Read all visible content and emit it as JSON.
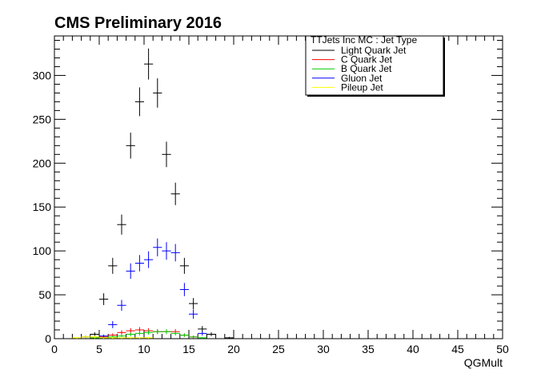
{
  "chart_data": {
    "type": "scatter",
    "title": "CMS Preliminary 2016",
    "xlabel": "QGMult",
    "ylabel": "",
    "xlim": [
      0,
      50
    ],
    "ylim": [
      0,
      345
    ],
    "x_ticks": [
      0,
      5,
      10,
      15,
      20,
      25,
      30,
      35,
      40,
      45,
      50
    ],
    "y_ticks": [
      0,
      50,
      100,
      150,
      200,
      250,
      300
    ],
    "legend": {
      "title": "TTJets Inc MC : Jet Type",
      "placement": "top-right",
      "entries": [
        {
          "label": "Light Quark Jet",
          "color": "#000000"
        },
        {
          "label": "C Quark Jet",
          "color": "#ff0000"
        },
        {
          "label": "B Quark Jet",
          "color": "#00cc00"
        },
        {
          "label": "Gluon Jet",
          "color": "#0000ff"
        },
        {
          "label": "Pileup Jet",
          "color": "#ffff00"
        }
      ]
    },
    "series": [
      {
        "name": "Light Quark Jet",
        "color": "#000000",
        "x": [
          3.5,
          4.5,
          5.5,
          6.5,
          7.5,
          8.5,
          9.5,
          10.5,
          11.5,
          12.5,
          13.5,
          14.5,
          15.5,
          16.5,
          17.5,
          19.5
        ],
        "y": [
          2,
          5,
          45,
          83,
          130,
          220,
          270,
          313,
          280,
          210,
          165,
          83,
          40,
          11,
          5,
          1
        ],
        "yerr": [
          1.5,
          2.2,
          6.7,
          9.1,
          11.4,
          14.8,
          16.4,
          17.7,
          16.7,
          14.5,
          12.8,
          9.1,
          6.3,
          3.3,
          2.2,
          1
        ]
      },
      {
        "name": "C Quark Jet",
        "color": "#ff0000",
        "x": [
          4.5,
          5.5,
          6.5,
          7.5,
          8.5,
          9.5,
          10.5,
          11.5,
          12.5,
          13.5,
          14.5,
          15.5
        ],
        "y": [
          1,
          2,
          4,
          7,
          9,
          10,
          9,
          8,
          8,
          8,
          4,
          2
        ],
        "yerr": [
          1,
          1.4,
          2,
          2.6,
          3,
          3.2,
          3,
          2.8,
          2.8,
          2.8,
          2,
          1.4
        ]
      },
      {
        "name": "B Quark Jet",
        "color": "#00cc00",
        "x": [
          4.5,
          5.5,
          6.5,
          7.5,
          8.5,
          9.5,
          10.5,
          11.5,
          12.5,
          13.5,
          14.5,
          15.5,
          16.5
        ],
        "y": [
          1,
          1,
          2,
          3,
          5,
          6,
          7,
          8,
          8,
          6,
          4,
          2,
          1
        ],
        "yerr": [
          1,
          1,
          1.4,
          1.7,
          2.2,
          2.4,
          2.6,
          2.8,
          2.8,
          2.4,
          2,
          1.4,
          1
        ]
      },
      {
        "name": "Gluon Jet",
        "color": "#0000ff",
        "x": [
          5.5,
          6.5,
          7.5,
          8.5,
          9.5,
          10.5,
          11.5,
          12.5,
          13.5,
          14.5,
          15.5,
          16.5
        ],
        "y": [
          3,
          16,
          38,
          77,
          86,
          90,
          104,
          100,
          98,
          56,
          28,
          6
        ],
        "yerr": [
          1.7,
          4,
          6.2,
          8.8,
          9.3,
          9.5,
          10.2,
          10,
          9.9,
          7.5,
          5.3,
          2.4
        ]
      },
      {
        "name": "Pileup Jet",
        "color": "#ffff00",
        "x": [
          2.5,
          3.5,
          4.5,
          5.5,
          6.5,
          7.5,
          8.5,
          9.5,
          10.5
        ],
        "y": [
          1,
          2,
          2,
          1,
          1,
          1,
          1,
          1,
          1
        ],
        "yerr": [
          1,
          1.4,
          1.4,
          1,
          1,
          1,
          1,
          1,
          1
        ]
      }
    ]
  }
}
